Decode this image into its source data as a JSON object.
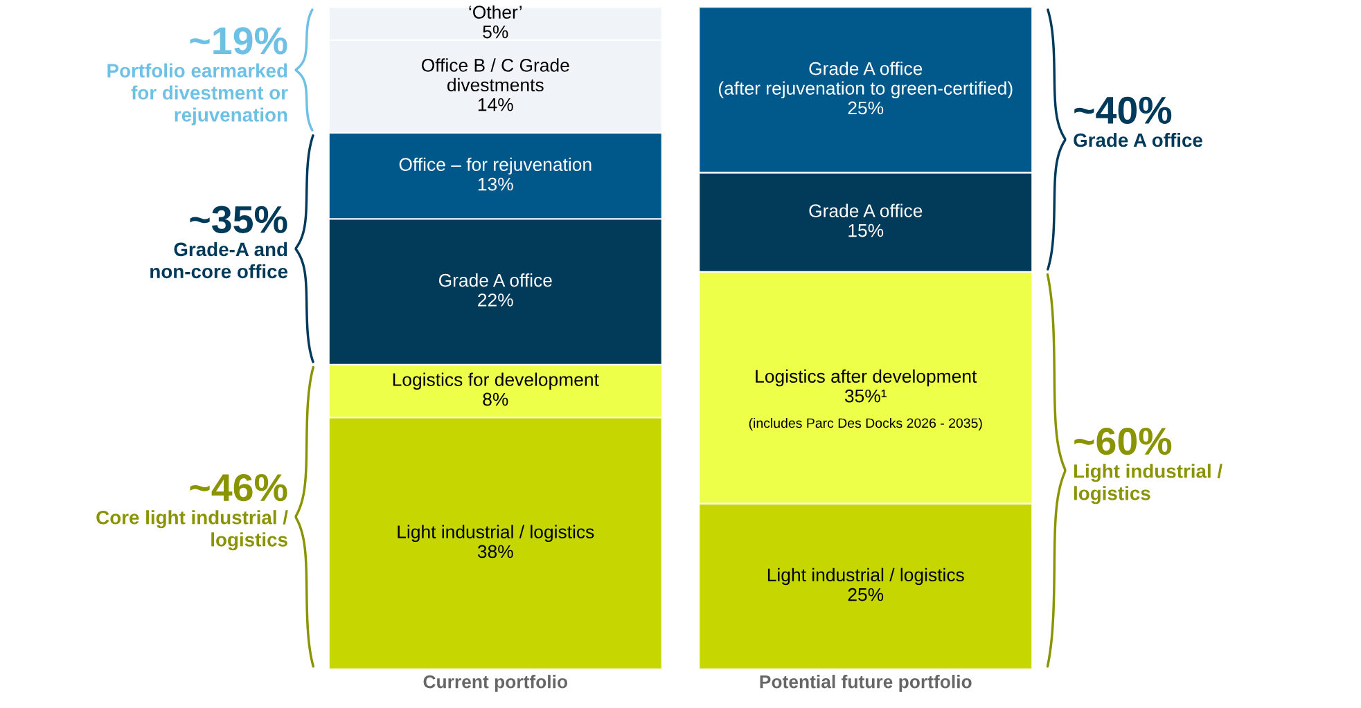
{
  "chart_data": {
    "type": "bar",
    "stacked": true,
    "categories": [
      "Current portfolio",
      "Potential future portfolio"
    ],
    "series": [
      {
        "name": "Light industrial / logistics",
        "color": "#c5d600",
        "values": [
          38,
          25
        ],
        "value_labels": [
          "38%",
          "25%"
        ]
      },
      {
        "name": "Logistics for development",
        "color": "#eeff4a",
        "values": [
          8,
          null
        ],
        "value_labels": [
          "8%",
          null
        ]
      },
      {
        "name": "Logistics after development",
        "color": "#eeff4a",
        "values": [
          null,
          35
        ],
        "value_labels": [
          null,
          "35%¹"
        ]
      },
      {
        "name": "Grade A office",
        "color": "#023a5a",
        "values": [
          22,
          15
        ],
        "value_labels": [
          "22%",
          "15%"
        ]
      },
      {
        "name": "Office – for rejuvenation",
        "color": "#00588a",
        "values": [
          13,
          null
        ],
        "value_labels": [
          "13%",
          null
        ]
      },
      {
        "name": "Office B / C Grade\ndivestments",
        "color": "#f0f4f8",
        "values": [
          14,
          null
        ],
        "value_labels": [
          "14%",
          null
        ]
      },
      {
        "name": "‘Other’",
        "color": "#f0f4f8",
        "values": [
          5,
          null
        ],
        "value_labels": [
          "5%",
          null
        ]
      },
      {
        "name": "Grade A office\n(after rejuvenation to green-certified)",
        "color": "#00598a",
        "values": [
          null,
          25
        ],
        "value_labels": [
          null,
          "25%"
        ]
      }
    ],
    "annotations": [
      "(includes Parc Des Docks 2026 - 2035)",
      "~19%",
      "Portfolio earmarked\nfor divestment or\nrejuvenation",
      "~35%",
      "Grade-A and\nnon-core office",
      "~46%",
      "Core light industrial /\nlogistics",
      "~40%",
      "Grade A office",
      "~60%",
      "Light industrial /\nlogistics"
    ]
  }
}
